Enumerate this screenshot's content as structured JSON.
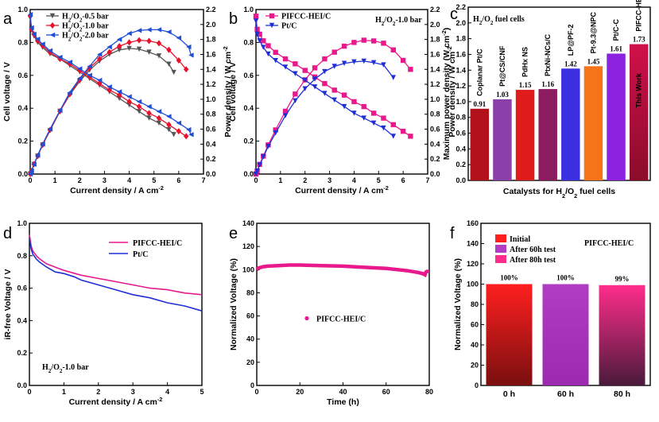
{
  "chart_data": [
    {
      "panel": "a",
      "type": "line",
      "xlabel": "Current density / A cm⁻²",
      "ylabel": "Cell voltage / V",
      "y2label": "Power density / W cm⁻²",
      "xlim": [
        0,
        7
      ],
      "ylim": [
        0,
        1.0
      ],
      "y2lim": [
        0,
        2.2
      ],
      "xticks": [
        0,
        1,
        2,
        3,
        4,
        5,
        6,
        7
      ],
      "yticks": [
        0.0,
        0.2,
        0.4,
        0.6,
        0.8,
        1.0
      ],
      "y2ticks": [
        0.0,
        0.2,
        0.4,
        0.6,
        0.8,
        1.0,
        1.2,
        1.4,
        1.6,
        1.8,
        2.0,
        2.2
      ],
      "series": [
        {
          "name": "H2/O2-0.5 bar",
          "color": "#555555",
          "marker": "triangle-down",
          "x": [
            0,
            0.05,
            0.15,
            0.3,
            0.5,
            0.8,
            1.2,
            1.6,
            2.0,
            2.4,
            2.8,
            3.2,
            3.6,
            4.0,
            4.4,
            4.8,
            5.2,
            5.6,
            5.8
          ],
          "voltage": [
            0.95,
            0.88,
            0.84,
            0.8,
            0.77,
            0.73,
            0.7,
            0.66,
            0.62,
            0.58,
            0.54,
            0.5,
            0.46,
            0.42,
            0.38,
            0.34,
            0.31,
            0.27,
            0.24
          ],
          "power": [
            0,
            0.04,
            0.13,
            0.24,
            0.39,
            0.58,
            0.84,
            1.06,
            1.24,
            1.39,
            1.51,
            1.6,
            1.66,
            1.68,
            1.67,
            1.63,
            1.58,
            1.47,
            1.36
          ]
        },
        {
          "name": "H2/O2-1.0 bar",
          "color": "#e8102a",
          "marker": "diamond",
          "x": [
            0,
            0.05,
            0.15,
            0.3,
            0.5,
            0.8,
            1.2,
            1.6,
            2.0,
            2.4,
            2.8,
            3.2,
            3.6,
            4.0,
            4.4,
            4.8,
            5.2,
            5.6,
            6.0,
            6.3
          ],
          "voltage": [
            0.96,
            0.88,
            0.85,
            0.81,
            0.78,
            0.74,
            0.7,
            0.67,
            0.63,
            0.59,
            0.55,
            0.51,
            0.48,
            0.44,
            0.41,
            0.37,
            0.34,
            0.3,
            0.26,
            0.23
          ],
          "power": [
            0,
            0.04,
            0.13,
            0.24,
            0.39,
            0.59,
            0.84,
            1.07,
            1.26,
            1.42,
            1.54,
            1.63,
            1.71,
            1.76,
            1.79,
            1.78,
            1.75,
            1.66,
            1.52,
            1.4
          ]
        },
        {
          "name": "H2/O2-2.0 bar",
          "color": "#1f4fd6",
          "marker": "triangle-left",
          "x": [
            0,
            0.05,
            0.15,
            0.3,
            0.5,
            0.8,
            1.2,
            1.6,
            2.0,
            2.4,
            2.8,
            3.2,
            3.6,
            4.0,
            4.4,
            4.8,
            5.2,
            5.6,
            6.0,
            6.4,
            6.5
          ],
          "voltage": [
            0.97,
            0.89,
            0.85,
            0.82,
            0.79,
            0.75,
            0.71,
            0.68,
            0.64,
            0.6,
            0.57,
            0.53,
            0.5,
            0.47,
            0.44,
            0.41,
            0.38,
            0.35,
            0.31,
            0.27,
            0.24
          ],
          "power": [
            0,
            0.04,
            0.13,
            0.25,
            0.4,
            0.6,
            0.85,
            1.09,
            1.28,
            1.44,
            1.6,
            1.7,
            1.8,
            1.88,
            1.92,
            1.93,
            1.93,
            1.9,
            1.82,
            1.7,
            1.59
          ]
        }
      ]
    },
    {
      "panel": "b",
      "type": "line",
      "xlabel": "Current density / A cm⁻²",
      "ylabel": "Cell voltage / V",
      "y2label": "Power density / W cm⁻²",
      "annotation": "H2/O2-1.0 bar",
      "xlim": [
        0,
        7
      ],
      "ylim": [
        0,
        1.0
      ],
      "y2lim": [
        0,
        2.2
      ],
      "xticks": [
        0,
        1,
        2,
        3,
        4,
        5,
        6,
        7
      ],
      "yticks": [
        0.0,
        0.2,
        0.4,
        0.6,
        0.8,
        1.0
      ],
      "y2ticks": [
        0.0,
        0.2,
        0.4,
        0.6,
        0.8,
        1.0,
        1.2,
        1.4,
        1.6,
        1.8,
        2.0,
        2.2
      ],
      "series": [
        {
          "name": "PIFCC-HEI/C",
          "color": "#e8198b",
          "marker": "square",
          "x": [
            0,
            0.05,
            0.15,
            0.3,
            0.5,
            0.8,
            1.2,
            1.6,
            2.0,
            2.4,
            2.8,
            3.2,
            3.6,
            4.0,
            4.4,
            4.8,
            5.2,
            5.6,
            6.0,
            6.3
          ],
          "voltage": [
            0.96,
            0.88,
            0.85,
            0.81,
            0.78,
            0.74,
            0.7,
            0.67,
            0.63,
            0.59,
            0.55,
            0.51,
            0.48,
            0.44,
            0.41,
            0.37,
            0.34,
            0.3,
            0.26,
            0.23
          ],
          "power": [
            0,
            0.04,
            0.13,
            0.24,
            0.39,
            0.59,
            0.84,
            1.07,
            1.26,
            1.42,
            1.54,
            1.63,
            1.71,
            1.76,
            1.79,
            1.78,
            1.75,
            1.66,
            1.52,
            1.4
          ]
        },
        {
          "name": "Pt/C",
          "color": "#1f2fd6",
          "marker": "triangle-down",
          "x": [
            0,
            0.05,
            0.15,
            0.3,
            0.5,
            0.8,
            1.2,
            1.6,
            2.0,
            2.4,
            2.8,
            3.2,
            3.6,
            4.0,
            4.4,
            4.8,
            5.2,
            5.6
          ],
          "voltage": [
            0.93,
            0.85,
            0.81,
            0.77,
            0.73,
            0.69,
            0.65,
            0.61,
            0.57,
            0.53,
            0.49,
            0.45,
            0.41,
            0.37,
            0.34,
            0.31,
            0.28,
            0.23
          ],
          "power": [
            0,
            0.04,
            0.12,
            0.23,
            0.37,
            0.55,
            0.78,
            0.98,
            1.14,
            1.27,
            1.37,
            1.44,
            1.48,
            1.5,
            1.51,
            1.49,
            1.46,
            1.29
          ]
        }
      ]
    },
    {
      "panel": "c",
      "type": "bar",
      "title": "H2/O2 fuel cells",
      "xlabel": "Catalysts for H2/O2 fuel cells",
      "ylabel": "Maximum power density (W cm⁻²)",
      "ylim": [
        0,
        2.2
      ],
      "yticks": [
        0.0,
        0.2,
        0.4,
        0.6,
        0.8,
        1.0,
        1.2,
        1.4,
        1.6,
        1.8,
        2.0,
        2.2
      ],
      "categories": [
        "Coplanar Pt/C",
        "Pt@CS/CNF",
        "PdHx NS",
        "PtxNi-NCs/C",
        "LP@PF-2",
        "Pt-9.3@NPC",
        "Pt/C-C",
        "PIFCC-HEI/C"
      ],
      "values": [
        0.91,
        1.03,
        1.15,
        1.16,
        1.42,
        1.45,
        1.61,
        1.73
      ],
      "value_labels": [
        "0.91",
        "1.03",
        "1.15",
        "1.16",
        "1.42",
        "1.45",
        "1.61",
        "1.73"
      ],
      "colors": [
        "#b0111a",
        "#8b3fa8",
        "#e01b1b",
        "#8c1c60",
        "#3b2fe0",
        "#f5741a",
        "#8b22e0",
        "#c4104a"
      ],
      "highlight_label": "This Work"
    },
    {
      "panel": "d",
      "type": "line",
      "xlabel": "Current density / A cm⁻²",
      "ylabel": "iR-free Voltage / V",
      "annotation": "H2/O2-1.0 bar",
      "xlim": [
        0,
        5
      ],
      "ylim": [
        0,
        1.0
      ],
      "xticks": [
        0,
        1,
        2,
        3,
        4,
        5
      ],
      "yticks": [
        0.0,
        0.2,
        0.4,
        0.6,
        0.8,
        1.0
      ],
      "series": [
        {
          "name": "PIFCC-HEI/C",
          "color": "#e8198b",
          "x": [
            0,
            0.05,
            0.1,
            0.2,
            0.3,
            0.5,
            0.75,
            1.0,
            1.5,
            2.0,
            2.5,
            3.0,
            3.5,
            4.0,
            4.5,
            5.0
          ],
          "y": [
            0.93,
            0.86,
            0.83,
            0.8,
            0.78,
            0.75,
            0.73,
            0.71,
            0.68,
            0.66,
            0.64,
            0.62,
            0.6,
            0.59,
            0.57,
            0.56
          ]
        },
        {
          "name": "Pt/C",
          "color": "#1f2fd6",
          "x": [
            0,
            0.05,
            0.1,
            0.2,
            0.3,
            0.5,
            0.75,
            1.0,
            1.3,
            1.5,
            2.0,
            2.5,
            3.0,
            3.5,
            4.0,
            4.5,
            5.0
          ],
          "y": [
            0.91,
            0.84,
            0.81,
            0.78,
            0.76,
            0.73,
            0.7,
            0.69,
            0.67,
            0.65,
            0.62,
            0.59,
            0.56,
            0.54,
            0.51,
            0.49,
            0.46
          ]
        }
      ]
    },
    {
      "panel": "e",
      "type": "line",
      "xlabel": "Time (h)",
      "ylabel": "Normalized Voltage (%)",
      "xlim": [
        0,
        80
      ],
      "ylim": [
        0,
        140
      ],
      "xticks": [
        0,
        20,
        40,
        60,
        80
      ],
      "yticks": [
        0,
        20,
        40,
        60,
        80,
        100,
        120,
        140
      ],
      "series": [
        {
          "name": "PIFCC-HEI/C",
          "color": "#e8198b",
          "x": [
            0,
            1,
            3,
            5,
            10,
            15,
            20,
            30,
            40,
            50,
            60,
            70,
            75,
            77,
            78,
            78.5,
            79,
            80
          ],
          "y": [
            100,
            101.5,
            102.5,
            103,
            103.5,
            104,
            104,
            103.5,
            103,
            102,
            101,
            99,
            97.5,
            96.5,
            95.5,
            98,
            98.5,
            98.5
          ]
        }
      ]
    },
    {
      "panel": "f",
      "type": "bar",
      "title": "PIFCC-HEI/C",
      "ylabel": "Normalized Voltage (%)",
      "ylim": [
        0,
        160
      ],
      "yticks": [
        0,
        20,
        40,
        60,
        80,
        100,
        120,
        140,
        160
      ],
      "categories": [
        "0 h",
        "60 h",
        "80 h"
      ],
      "values": [
        100,
        100,
        99
      ],
      "value_labels": [
        "100%",
        "100%",
        "99%"
      ],
      "legend": [
        "Initial",
        "After 60h test",
        "After 80h test"
      ],
      "colors_top": [
        "#ff1f1f",
        "#b03dc4",
        "#ff2d8c"
      ],
      "colors_bottom": [
        "#7a0f0f",
        "#9b2ab0",
        "#5a1a3a"
      ]
    }
  ],
  "panel_letters": [
    "a",
    "b",
    "c",
    "d",
    "e",
    "f"
  ]
}
